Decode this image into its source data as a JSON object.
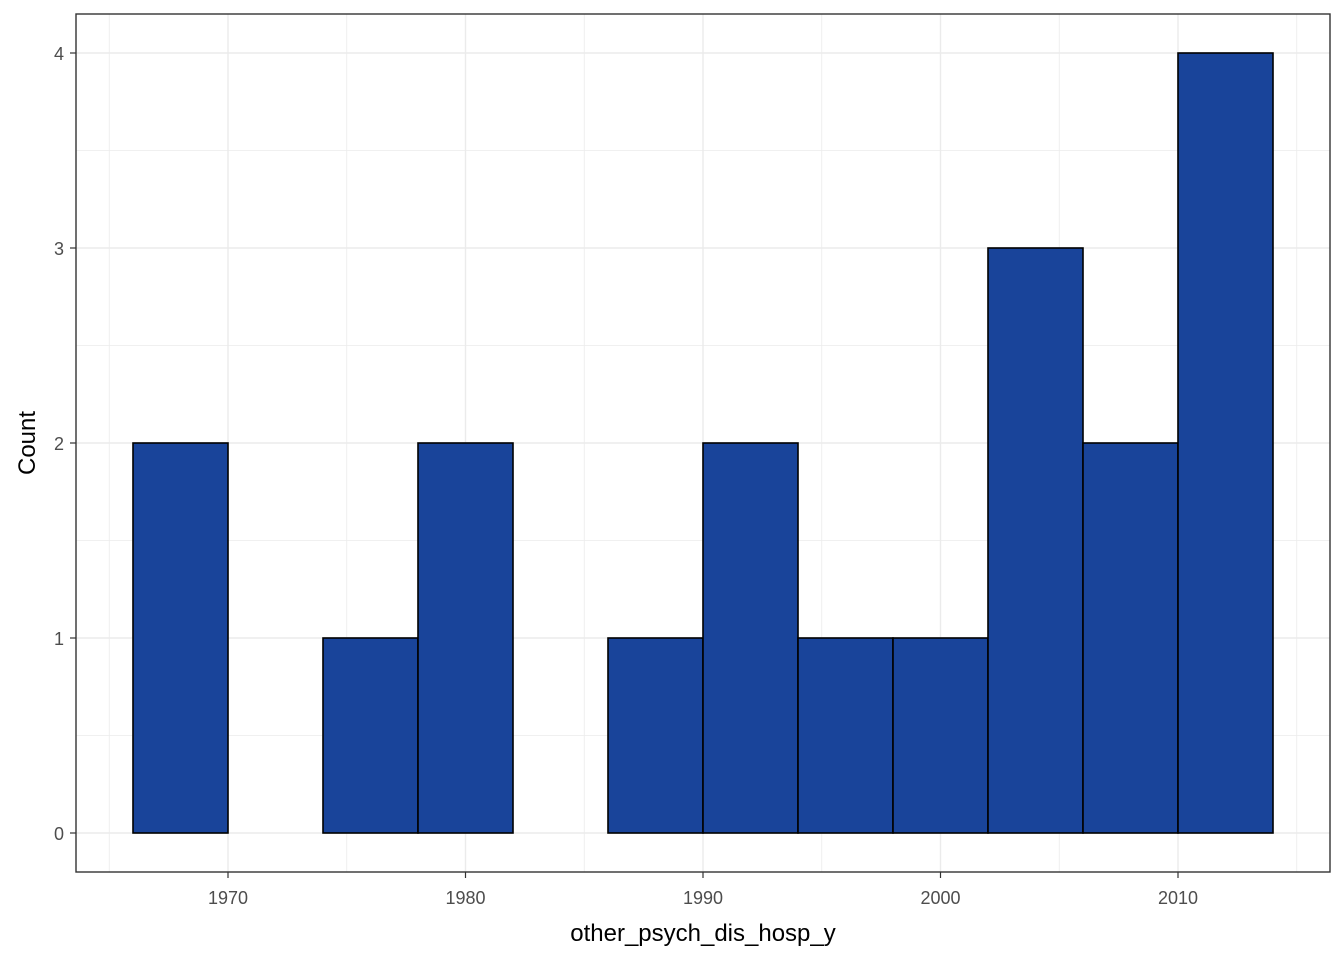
{
  "chart_data": {
    "type": "bar",
    "subtype": "histogram",
    "title": "",
    "xlabel": "other_psych_dis_hosp_y",
    "ylabel": "Count",
    "bins": [
      {
        "start": 1966,
        "end": 1970,
        "count": 2
      },
      {
        "start": 1970,
        "end": 1974,
        "count": 0
      },
      {
        "start": 1974,
        "end": 1978,
        "count": 1
      },
      {
        "start": 1978,
        "end": 1982,
        "count": 2
      },
      {
        "start": 1982,
        "end": 1986,
        "count": 0
      },
      {
        "start": 1986,
        "end": 1990,
        "count": 1
      },
      {
        "start": 1990,
        "end": 1994,
        "count": 2
      },
      {
        "start": 1994,
        "end": 1998,
        "count": 1
      },
      {
        "start": 1998,
        "end": 2002,
        "count": 1
      },
      {
        "start": 2002,
        "end": 2006,
        "count": 3
      },
      {
        "start": 2006,
        "end": 2010,
        "count": 2
      },
      {
        "start": 2010,
        "end": 2014,
        "count": 4
      }
    ],
    "xlim": [
      1963.6,
      2016.4
    ],
    "ylim": [
      -0.2,
      4.2
    ],
    "xticks": [
      1970,
      1980,
      1990,
      2000,
      2010
    ],
    "yticks": [
      0,
      1,
      2,
      3,
      4
    ],
    "xtick_labels": [
      "1970",
      "1980",
      "1990",
      "2000",
      "2010"
    ],
    "ytick_labels": [
      "0",
      "1",
      "2",
      "3",
      "4"
    ],
    "grid": true,
    "legend": "none",
    "colors": {
      "bar_fill": "#19449A",
      "bar_stroke": "#000000",
      "grid": "#EBEBEB",
      "panel_border": "#333333",
      "tick_text": "#4D4D4D"
    }
  }
}
